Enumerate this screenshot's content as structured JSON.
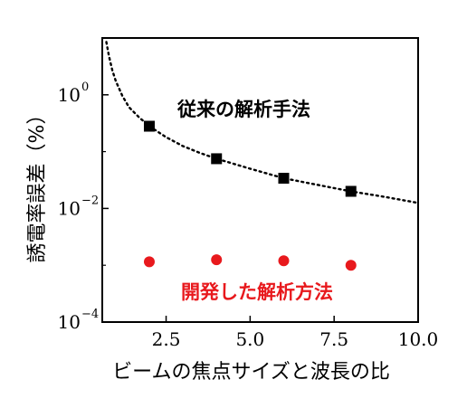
{
  "chart_data": {
    "type": "scatter",
    "xlabel": "ビームの焦点サイズと波長の比",
    "ylabel": "誘電率誤差（%）",
    "xlim": [
      0.6,
      10.0
    ],
    "ylim": [
      0.0001,
      10
    ],
    "yscale": "log",
    "x_ticks": [
      {
        "value": 2.5,
        "label": "2.5"
      },
      {
        "value": 5.0,
        "label": "5.0"
      },
      {
        "value": 7.5,
        "label": "7.5"
      },
      {
        "value": 10.0,
        "label": "10.0"
      }
    ],
    "y_ticks": [
      {
        "value": 1,
        "base": "10",
        "exp": "0"
      },
      {
        "value": 0.01,
        "base": "10",
        "exp": "−2"
      },
      {
        "value": 0.0001,
        "base": "10",
        "exp": "−4"
      }
    ],
    "series": [
      {
        "name": "従来の解析手法",
        "marker": "square",
        "color": "#000000",
        "x": [
          2,
          4,
          6,
          8
        ],
        "y": [
          0.28,
          0.075,
          0.034,
          0.02
        ]
      },
      {
        "name": "開発した解析方法",
        "marker": "circle",
        "color": "#e8191d",
        "x": [
          2,
          4,
          6,
          8
        ],
        "y": [
          0.00115,
          0.00125,
          0.0012,
          0.001
        ]
      }
    ],
    "trend_line": {
      "style": "dotted",
      "color": "#000000",
      "x": [
        0.72,
        0.8,
        0.9,
        1.0,
        1.2,
        1.4,
        1.7,
        2.0,
        2.5,
        3.0,
        3.5,
        4.0,
        5.0,
        6.0,
        7.0,
        8.0,
        9.0,
        10.0
      ],
      "y": [
        8.5,
        4.8,
        2.7,
        1.75,
        0.95,
        0.6,
        0.4,
        0.28,
        0.18,
        0.125,
        0.095,
        0.075,
        0.05,
        0.034,
        0.026,
        0.02,
        0.016,
        0.0125
      ]
    },
    "annotations": [
      {
        "text": "従来の解析手法",
        "color": "#000000"
      },
      {
        "text": "開発した解析方法",
        "color": "#e8191d"
      }
    ],
    "grid": false,
    "legend": "none"
  }
}
